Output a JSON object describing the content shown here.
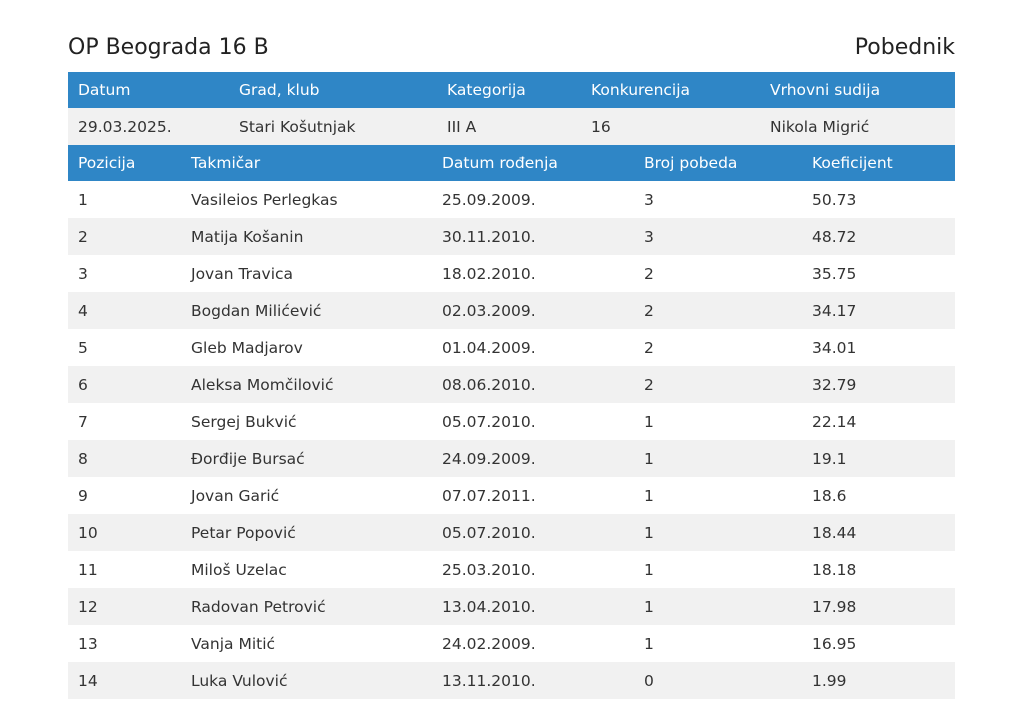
{
  "header": {
    "title": "OP Beograda 16 B",
    "subtitle": "Pobednik"
  },
  "info_table": {
    "headers": [
      "Datum",
      "Grad, klub",
      "Kategorija",
      "Konkurencija",
      "Vrhovni sudija"
    ],
    "row": [
      "29.03.2025.",
      "Stari Košutnjak",
      "III A",
      "16",
      "Nikola Migrić"
    ]
  },
  "results_table": {
    "headers": [
      "Pozicija",
      "Takmičar",
      "Datum rođenja",
      "Broj pobeda",
      "Koeficijent"
    ],
    "rows": [
      [
        "1",
        "Vasileios Perlegkas",
        "25.09.2009.",
        "3",
        "50.73"
      ],
      [
        "2",
        "Matija Košanin",
        "30.11.2010.",
        "3",
        "48.72"
      ],
      [
        "3",
        "Jovan Travica",
        "18.02.2010.",
        "2",
        "35.75"
      ],
      [
        "4",
        "Bogdan Milićević",
        "02.03.2009.",
        "2",
        "34.17"
      ],
      [
        "5",
        "Gleb Madjarov",
        "01.04.2009.",
        "2",
        "34.01"
      ],
      [
        "6",
        "Aleksa Momčilović",
        "08.06.2010.",
        "2",
        "32.79"
      ],
      [
        "7",
        "Sergej Bukvić",
        "05.07.2010.",
        "1",
        "22.14"
      ],
      [
        "8",
        "Đorđije Bursać",
        "24.09.2009.",
        "1",
        "19.1"
      ],
      [
        "9",
        "Jovan Garić",
        "07.07.2011.",
        "1",
        "18.6"
      ],
      [
        "10",
        "Petar Popović",
        "05.07.2010.",
        "1",
        "18.44"
      ],
      [
        "11",
        "Miloš Uzelac",
        "25.03.2010.",
        "1",
        "18.18"
      ],
      [
        "12",
        "Radovan Petrović",
        "13.04.2010.",
        "1",
        "17.98"
      ],
      [
        "13",
        "Vanja Mitić",
        "24.02.2009.",
        "1",
        "16.95"
      ],
      [
        "14",
        "Luka Vulović",
        "13.11.2010.",
        "0",
        "1.99"
      ]
    ]
  },
  "colors": {
    "header_bg": "#2f86c6",
    "alt_row_bg": "#f1f1f1"
  }
}
